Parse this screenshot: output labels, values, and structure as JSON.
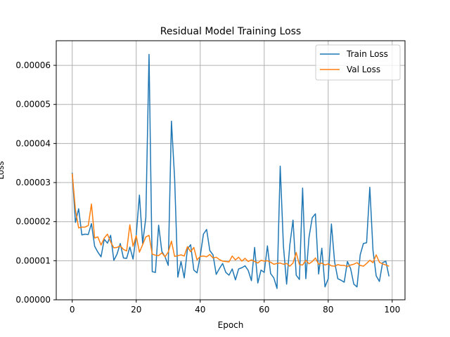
{
  "chart_data": {
    "type": "line",
    "title": "Residual Model Training Loss",
    "xlabel": "Epoch",
    "ylabel": "Loss",
    "xlim": [
      -5.0,
      104.0
    ],
    "ylim": [
      0.0,
      6.63e-05
    ],
    "xticks": [
      0,
      20,
      40,
      60,
      80,
      100
    ],
    "yticks": [
      0.0,
      1e-05,
      2e-05,
      3e-05,
      4e-05,
      5e-05,
      6e-05
    ],
    "ytick_labels": [
      "0.00000",
      "0.00001",
      "0.00002",
      "0.00003",
      "0.00004",
      "0.00005",
      "0.00006"
    ],
    "grid": true,
    "legend_position": "top-right",
    "series": [
      {
        "name": "Train Loss",
        "color": "#1f77b4",
        "x": [
          0,
          1,
          2,
          3,
          4,
          5,
          6,
          7,
          8,
          9,
          10,
          11,
          12,
          13,
          14,
          15,
          16,
          17,
          18,
          19,
          20,
          21,
          22,
          23,
          24,
          25,
          26,
          27,
          28,
          29,
          30,
          31,
          32,
          33,
          34,
          35,
          36,
          37,
          38,
          39,
          40,
          41,
          42,
          43,
          44,
          45,
          46,
          47,
          48,
          49,
          50,
          51,
          52,
          53,
          54,
          55,
          56,
          57,
          58,
          59,
          60,
          61,
          62,
          63,
          64,
          65,
          66,
          67,
          68,
          69,
          70,
          71,
          72,
          73,
          74,
          75,
          76,
          77,
          78,
          79,
          80,
          81,
          82,
          83,
          84,
          85,
          86,
          87,
          88,
          89,
          90,
          91,
          92,
          93,
          94,
          95,
          96,
          97,
          98,
          99
        ],
        "values": [
          3.25e-05,
          1.98e-05,
          2.33e-05,
          1.66e-05,
          1.68e-05,
          1.67e-05,
          1.95e-05,
          1.37e-05,
          1.22e-05,
          1.1e-05,
          1.55e-05,
          1.45e-05,
          1.65e-05,
          1.01e-05,
          1.17e-05,
          1.44e-05,
          1.07e-05,
          1.06e-05,
          1.35e-05,
          1.04e-05,
          1.66e-05,
          2.68e-05,
          1.44e-05,
          2.1e-05,
          6.28e-05,
          7.2e-06,
          7e-06,
          1.91e-05,
          1.24e-05,
          1.1e-05,
          8.8e-06,
          4.57e-05,
          3.1e-05,
          5.8e-06,
          9.8e-06,
          5.6e-06,
          1.3e-05,
          1.41e-05,
          7.6e-06,
          6.9e-06,
          1.12e-05,
          1.68e-05,
          1.8e-05,
          1.26e-05,
          1.15e-05,
          6.5e-06,
          8e-06,
          9.3e-06,
          7e-06,
          6.3e-06,
          7.9e-06,
          5.1e-06,
          7.9e-06,
          8.2e-06,
          8.7e-06,
          7.5e-06,
          4.9e-06,
          1.34e-05,
          4.3e-06,
          7.6e-06,
          7e-06,
          1.38e-05,
          6.7e-06,
          5.6e-06,
          2.9e-06,
          3.42e-05,
          1.38e-05,
          4e-06,
          1.4e-05,
          2.04e-05,
          6.3e-06,
          5.2e-06,
          2.86e-05,
          5.4e-06,
          1.6e-05,
          2.1e-05,
          2.2e-05,
          6.6e-06,
          1.32e-05,
          3.3e-06,
          5.4e-06,
          1.94e-05,
          9.7e-06,
          5.4e-06,
          5e-06,
          4.5e-06,
          9.8e-06,
          8e-06,
          4e-06,
          3.3e-06,
          1.15e-05,
          1.44e-05,
          1.46e-05,
          2.88e-05,
          1.26e-05,
          6.1e-06,
          4.7e-06,
          9.5e-06,
          9.9e-06,
          6e-06
        ]
      },
      {
        "name": "Val Loss",
        "color": "#ff7f0e",
        "x": [
          0,
          1,
          2,
          3,
          4,
          5,
          6,
          7,
          8,
          9,
          10,
          11,
          12,
          13,
          14,
          15,
          16,
          17,
          18,
          19,
          20,
          21,
          22,
          23,
          24,
          25,
          26,
          27,
          28,
          29,
          30,
          31,
          32,
          33,
          34,
          35,
          36,
          37,
          38,
          39,
          40,
          41,
          42,
          43,
          44,
          45,
          46,
          47,
          48,
          49,
          50,
          51,
          52,
          53,
          54,
          55,
          56,
          57,
          58,
          59,
          60,
          61,
          62,
          63,
          64,
          65,
          66,
          67,
          68,
          69,
          70,
          71,
          72,
          73,
          74,
          75,
          76,
          77,
          78,
          79,
          80,
          81,
          82,
          83,
          84,
          85,
          86,
          87,
          88,
          89,
          90,
          91,
          92,
          93,
          94,
          95,
          96,
          97,
          98,
          99
        ],
        "values": [
          3.23e-05,
          2.3e-05,
          1.84e-05,
          1.86e-05,
          1.86e-05,
          1.9e-05,
          2.45e-05,
          1.58e-05,
          1.61e-05,
          1.4e-05,
          1.58e-05,
          1.68e-05,
          1.48e-05,
          1.33e-05,
          1.34e-05,
          1.38e-05,
          1.29e-05,
          1.25e-05,
          1.92e-05,
          1.37e-05,
          1.64e-05,
          1.22e-05,
          1.41e-05,
          1.61e-05,
          1.65e-05,
          1.17e-05,
          1.14e-05,
          1.13e-05,
          1.2e-05,
          1.1e-05,
          1.22e-05,
          1.5e-05,
          1.11e-05,
          1.13e-05,
          1.15e-05,
          1.12e-05,
          1.36e-05,
          1.23e-05,
          1.34e-05,
          1.02e-05,
          1.11e-05,
          1.12e-05,
          1.1e-05,
          1.16e-05,
          1.07e-05,
          1.09e-05,
          1.03e-05,
          9.9e-06,
          9.8e-06,
          9.7e-06,
          1.12e-05,
          1.02e-05,
          1.09e-05,
          9.9e-06,
          1.06e-05,
          9.8e-06,
          1.02e-05,
          9.8e-06,
          9.4e-06,
          1.01e-05,
          9.9e-06,
          1e-05,
          9.6e-06,
          9.1e-06,
          9.3e-06,
          9.4e-06,
          9.1e-06,
          9.3e-06,
          8.6e-06,
          9.4e-06,
          1.21e-05,
          9e-06,
          8.9e-06,
          1.01e-05,
          9.2e-06,
          9.8e-06,
          1.07e-05,
          9.1e-06,
          9.4e-06,
          8.9e-06,
          9.2e-06,
          8.7e-06,
          8.6e-06,
          9e-06,
          8.8e-06,
          8.8e-06,
          8.5e-06,
          8.9e-06,
          9.1e-06,
          9.5e-06,
          8.8e-06,
          8.6e-06,
          9.3e-06,
          1.01e-05,
          9.5e-06,
          1.15e-05,
          9.6e-06,
          9.2e-06,
          8.9e-06,
          8.6e-06
        ]
      }
    ]
  }
}
